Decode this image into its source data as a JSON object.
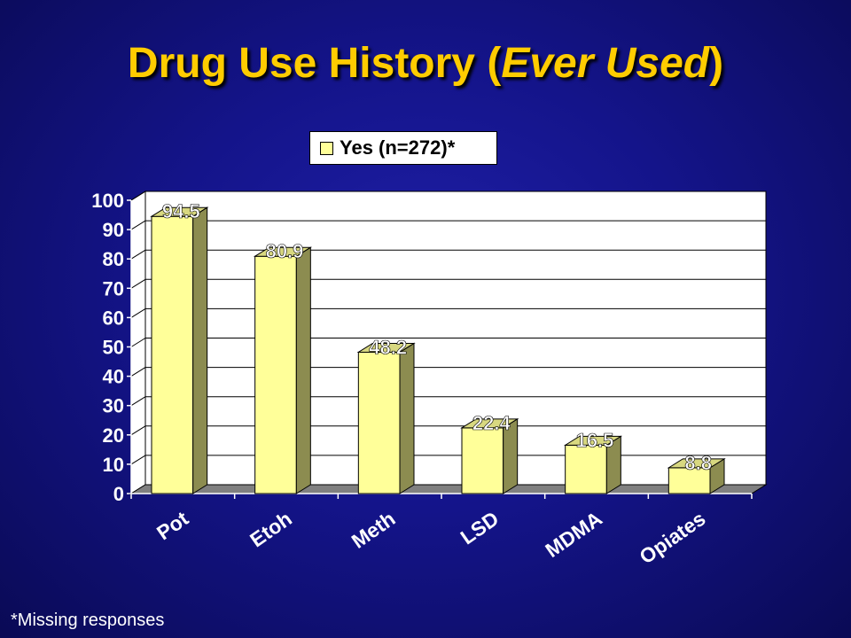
{
  "title": {
    "part1": "Drug Use History (",
    "italic": "Ever Used",
    "part2": ")"
  },
  "footnote": "*Missing responses",
  "chart_data": {
    "type": "bar",
    "title": "Drug Use History (Ever Used)",
    "categories": [
      "Pot",
      "Etoh",
      "Meth",
      "LSD",
      "MDMA",
      "Opiates"
    ],
    "series": [
      {
        "name": "Yes (n=272)*",
        "values": [
          94.5,
          80.9,
          48.2,
          22.4,
          16.5,
          8.8
        ]
      }
    ],
    "data_labels": [
      "94.5",
      "80.9",
      "48.2",
      "22.4",
      "16.5",
      "8.8"
    ],
    "yticks": [
      "0",
      "10",
      "20",
      "30",
      "40",
      "50",
      "60",
      "70",
      "80",
      "90",
      "100"
    ],
    "ylim": [
      0,
      100
    ],
    "xlabel": "",
    "ylabel": "",
    "grid": true,
    "legend": "top-center",
    "colors": {
      "bar_front": "#ffff99",
      "bar_side": "#8c8c50",
      "bar_top": "#d8d880",
      "plot_back": "#ffffff",
      "floor": "#808080",
      "axis_text": "#ffffff",
      "label_text": "#ffffff"
    }
  }
}
